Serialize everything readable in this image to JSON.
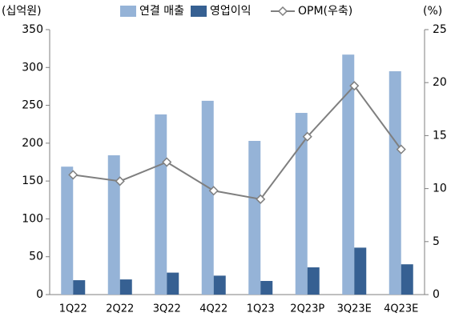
{
  "chart_data": {
    "type": "bar",
    "y_label": "(십억원)",
    "y2_label": "(%)",
    "categories": [
      "1Q22",
      "2Q22",
      "3Q22",
      "4Q22",
      "1Q23",
      "2Q23P",
      "3Q23E",
      "4Q23E"
    ],
    "series": [
      {
        "name": "연결 매출",
        "color": "#95b3d7",
        "values": [
          169,
          184,
          238,
          256,
          203,
          240,
          317,
          295
        ]
      },
      {
        "name": "영업이익",
        "color": "#366092",
        "values": [
          19,
          20,
          29,
          25,
          18,
          36,
          62,
          40
        ]
      },
      {
        "name": "OPM(우축)",
        "color": "#7f7f7f",
        "type": "line",
        "axis": "y2",
        "values": [
          11.3,
          10.7,
          12.5,
          9.8,
          9.0,
          14.9,
          19.7,
          13.7
        ]
      }
    ],
    "ylim": [
      0,
      350
    ],
    "yticks": [
      0,
      50,
      100,
      150,
      200,
      250,
      300,
      350
    ],
    "y2lim": [
      0,
      25
    ],
    "y2ticks": [
      0,
      5,
      10,
      15,
      20,
      25
    ],
    "grid": false,
    "legend": "top"
  }
}
